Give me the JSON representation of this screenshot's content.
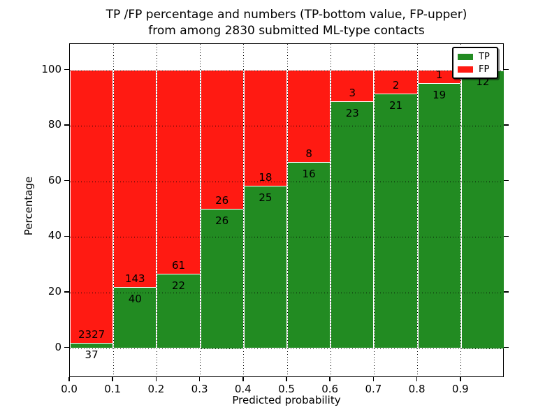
{
  "title": {
    "line1": "TP /FP percentage and numbers (TP-bottom value, FP-upper)",
    "line2": "from among 2830 submitted ML-type contacts"
  },
  "axes": {
    "xlabel": "Predicted probability",
    "ylabel": "Percentage",
    "x_tick_labels": [
      "0.0",
      "0.1",
      "0.2",
      "0.3",
      "0.4",
      "0.5",
      "0.6",
      "0.7",
      "0.8",
      "0.9"
    ],
    "y_tick_labels": [
      "0",
      "20",
      "40",
      "60",
      "80",
      "100"
    ],
    "y_tick_values": [
      0,
      20,
      40,
      60,
      80,
      100
    ]
  },
  "legend": {
    "items": [
      {
        "label": "TP",
        "color": "#228b22"
      },
      {
        "label": "FP",
        "color": "#ff1a12"
      }
    ]
  },
  "colors": {
    "tp": "#228b22",
    "fp": "#ff1a12",
    "background": "#ffffff",
    "grid": "#000000",
    "text": "#000000"
  },
  "chart_data": {
    "type": "bar",
    "stacked": true,
    "normalized": "percent",
    "title": "TP /FP percentage and numbers (TP-bottom value, FP-upper) from among 2830 submitted ML-type contacts",
    "xlabel": "Predicted probability",
    "ylabel": "Percentage",
    "xlim": [
      0.0,
      1.0
    ],
    "ylim": [
      -11,
      110
    ],
    "grid": true,
    "legend_position": "upper right",
    "total_contacts": 2830,
    "bin_width": 0.1,
    "bins": [
      {
        "x0": 0.0,
        "x1": 0.1,
        "tp": 37,
        "fp": 2327,
        "show_fp_label": true
      },
      {
        "x0": 0.1,
        "x1": 0.2,
        "tp": 40,
        "fp": 143,
        "show_fp_label": true
      },
      {
        "x0": 0.2,
        "x1": 0.3,
        "tp": 22,
        "fp": 61,
        "show_fp_label": true
      },
      {
        "x0": 0.3,
        "x1": 0.4,
        "tp": 26,
        "fp": 26,
        "show_fp_label": true
      },
      {
        "x0": 0.4,
        "x1": 0.5,
        "tp": 25,
        "fp": 18,
        "show_fp_label": true
      },
      {
        "x0": 0.5,
        "x1": 0.6,
        "tp": 16,
        "fp": 8,
        "show_fp_label": true
      },
      {
        "x0": 0.6,
        "x1": 0.7,
        "tp": 23,
        "fp": 3,
        "show_fp_label": true
      },
      {
        "x0": 0.7,
        "x1": 0.8,
        "tp": 21,
        "fp": 2,
        "show_fp_label": true
      },
      {
        "x0": 0.8,
        "x1": 0.9,
        "tp": 19,
        "fp": 1,
        "show_fp_label": true
      },
      {
        "x0": 0.9,
        "x1": 1.0,
        "tp": 12,
        "fp": 0,
        "show_fp_label": false
      }
    ],
    "series": [
      {
        "name": "TP",
        "counts": [
          37,
          40,
          22,
          26,
          25,
          16,
          23,
          21,
          19,
          12
        ]
      },
      {
        "name": "FP",
        "counts": [
          2327,
          143,
          61,
          26,
          18,
          8,
          3,
          2,
          1,
          0
        ]
      }
    ]
  }
}
